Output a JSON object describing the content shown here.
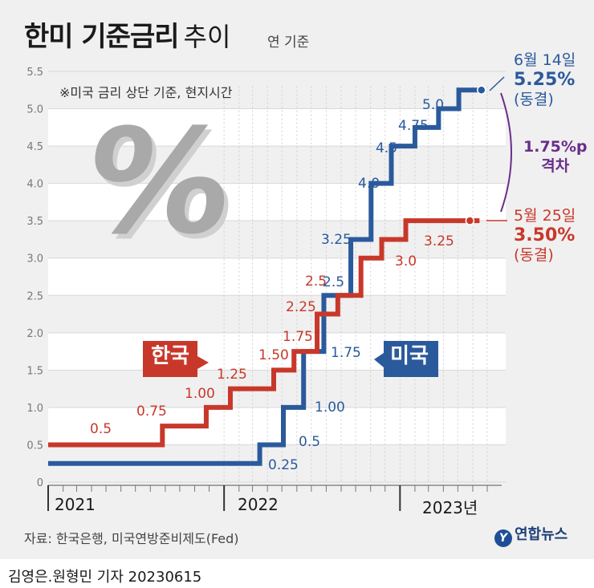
{
  "title": {
    "main": "한미 기준금리",
    "sub": "추이",
    "unit": "연 기준"
  },
  "note": "※미국 금리 상단 기준, 현지시간",
  "decor_symbol": "%",
  "colors": {
    "korea": "#c8382a",
    "us": "#2a5a9c",
    "gap": "#6a2e8a"
  },
  "chart_data": {
    "type": "line",
    "step": true,
    "xlabel": "",
    "ylabel": "",
    "ylim": [
      0,
      5.5
    ],
    "yticks": [
      "0",
      "0.5",
      "1.0",
      "1.5",
      "2.0",
      "2.5",
      "3.0",
      "3.5",
      "4.0",
      "4.5",
      "5.0",
      "5.5"
    ],
    "xlim": [
      "2021-01-01",
      "2023-07-31"
    ],
    "year_labels": [
      "2021",
      "2022",
      "2023년"
    ],
    "series": [
      {
        "name": "한국",
        "color": "#c8382a",
        "points": [
          [
            "2021-01-01",
            0.5
          ],
          [
            "2021-08-26",
            0.75
          ],
          [
            "2021-11-25",
            1.0
          ],
          [
            "2022-01-14",
            1.25
          ],
          [
            "2022-04-14",
            1.5
          ],
          [
            "2022-05-26",
            1.75
          ],
          [
            "2022-07-13",
            2.25
          ],
          [
            "2022-08-25",
            2.5
          ],
          [
            "2022-10-12",
            3.0
          ],
          [
            "2022-11-24",
            3.25
          ],
          [
            "2023-01-13",
            3.5
          ],
          [
            "2023-06-15",
            3.5
          ]
        ]
      },
      {
        "name": "미국",
        "color": "#2a5a9c",
        "points": [
          [
            "2021-01-01",
            0.25
          ],
          [
            "2022-03-16",
            0.5
          ],
          [
            "2022-05-04",
            1.0
          ],
          [
            "2022-06-15",
            1.75
          ],
          [
            "2022-07-27",
            2.5
          ],
          [
            "2022-09-21",
            3.25
          ],
          [
            "2022-11-02",
            4.0
          ],
          [
            "2022-12-14",
            4.5
          ],
          [
            "2023-02-01",
            4.75
          ],
          [
            "2023-03-22",
            5.0
          ],
          [
            "2023-05-03",
            5.25
          ],
          [
            "2023-06-14",
            5.25
          ]
        ]
      }
    ],
    "data_labels": {
      "korea": [
        "0.5",
        "0.75",
        "1.00",
        "1.25",
        "1.50",
        "1.75",
        "2.25",
        "2.5",
        "3.0",
        "3.25"
      ],
      "us": [
        "0.25",
        "0.5",
        "1.00",
        "1.75",
        "2.5",
        "3.25",
        "4.0",
        "4.5",
        "4.75",
        "5.0"
      ]
    },
    "annotations": {
      "us_end": {
        "date": "6월 14일",
        "value": "5.25%",
        "status": "(동결)"
      },
      "kr_end": {
        "date": "5월 25일",
        "value": "3.50%",
        "status": "(동결)"
      },
      "gap": {
        "value": "1.75%p",
        "label": "격차"
      }
    }
  },
  "series_tags": {
    "korea": "한국",
    "us": "미국"
  },
  "source": "자료: 한국은행, 미국연방준비제도(Fed)",
  "logo": {
    "mark": "Y",
    "text": "연합뉴스"
  },
  "credit": "김영은.원형민 기자  20230615"
}
